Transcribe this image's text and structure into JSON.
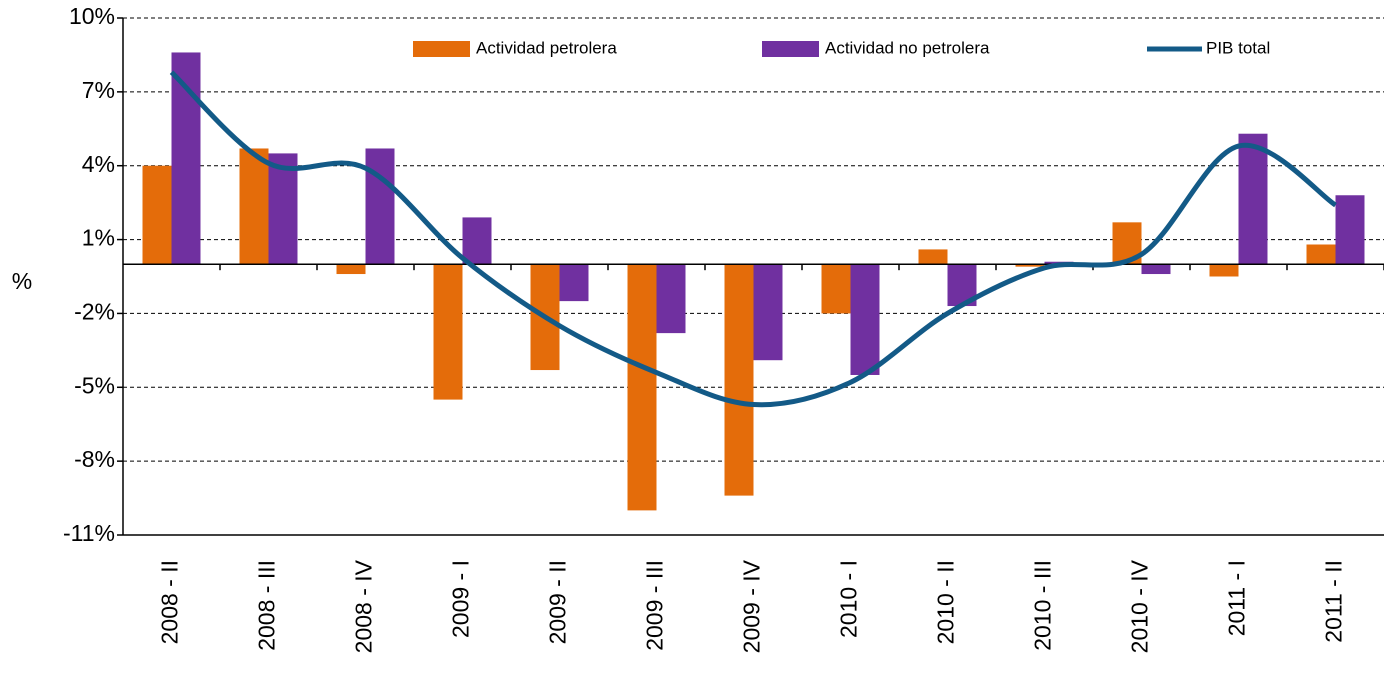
{
  "chart_data": {
    "type": "bar_line",
    "y_label": "%",
    "categories": [
      "2008 - II",
      "2008 - III",
      "2008 - IV",
      "2009 - I",
      "2009 - II",
      "2009 - III",
      "2009 - IV",
      "2010 - I",
      "2010 - II",
      "2010 - III",
      "2010 - IV",
      "2011 - I",
      "2011 - II"
    ],
    "series": [
      {
        "name": "Actividad petrolera",
        "type": "bar",
        "color": "#e46c0a",
        "values": [
          4.0,
          4.7,
          -0.4,
          -5.5,
          -4.3,
          -10.0,
          -9.4,
          -2.0,
          0.6,
          -0.1,
          1.7,
          -0.5,
          0.8
        ]
      },
      {
        "name": "Actividad no petrolera",
        "type": "bar",
        "color": "#7030a0",
        "values": [
          8.6,
          4.5,
          4.7,
          1.9,
          -1.5,
          -2.8,
          -3.9,
          -4.5,
          -1.7,
          0.1,
          -0.4,
          5.3,
          2.8
        ]
      },
      {
        "name": "PIB total",
        "type": "line",
        "color": "#135a87",
        "values": [
          7.8,
          4.1,
          3.9,
          0.25,
          -2.5,
          -4.4,
          -5.7,
          -4.8,
          -2.0,
          -0.15,
          0.4,
          4.8,
          2.4
        ]
      }
    ],
    "ylim": [
      -11,
      10
    ],
    "yticks": [
      {
        "value": -11,
        "label": "-11%"
      },
      {
        "value": -8,
        "label": "-8%"
      },
      {
        "value": -5,
        "label": "-5%"
      },
      {
        "value": -2,
        "label": "-2%"
      },
      {
        "value": 1,
        "label": "1%"
      },
      {
        "value": 4,
        "label": "4%"
      },
      {
        "value": 7,
        "label": "7%"
      },
      {
        "value": 10,
        "label": "10%"
      }
    ],
    "grid": true,
    "legend": "top"
  }
}
